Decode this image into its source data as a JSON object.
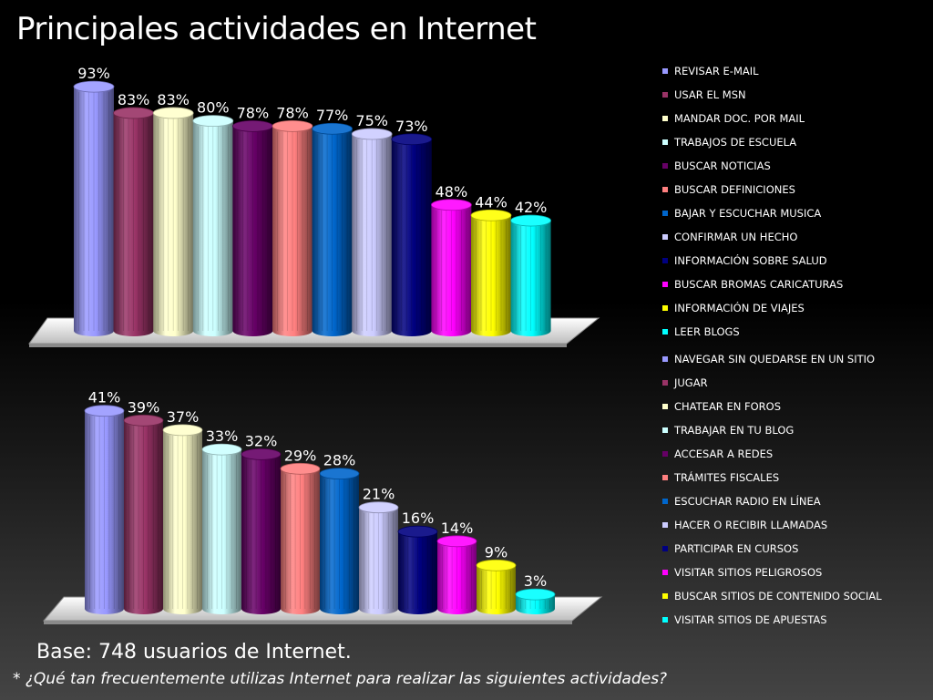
{
  "title": "Principales actividades en Internet",
  "base_text": "Base: 748 usuarios de Internet.",
  "footnote": "* ¿Qué tan frecuentemente utilizas Internet para realizar las siguientes actividades?",
  "chart_data": [
    {
      "type": "bar",
      "style": "3d-cylinder",
      "legend_position": "right",
      "categories": [
        "REVISAR E-MAIL",
        "USAR EL MSN",
        "MANDAR DOC. POR MAIL",
        "TRABAJOS DE ESCUELA",
        "BUSCAR NOTICIAS",
        "BUSCAR DEFINICIONES",
        "BAJAR Y ESCUCHAR MUSICA",
        "CONFIRMAR UN HECHO",
        "INFORMACIÓN SOBRE SALUD",
        "BUSCAR BROMAS CARICATURAS",
        "INFORMACIÓN DE VIAJES",
        "LEER BLOGS"
      ],
      "values": [
        93,
        83,
        83,
        80,
        78,
        78,
        77,
        75,
        73,
        48,
        44,
        42
      ],
      "labels": [
        "93%",
        "83%",
        "83%",
        "80%",
        "78%",
        "78%",
        "77%",
        "75%",
        "73%",
        "48%",
        "44%",
        "42%"
      ],
      "colors": [
        "#9999ff",
        "#993366",
        "#ffffcc",
        "#ccffff",
        "#660066",
        "#ff8080",
        "#0066cc",
        "#ccccff",
        "#000080",
        "#ff00ff",
        "#ffff00",
        "#00ffff"
      ]
    },
    {
      "type": "bar",
      "style": "3d-cylinder",
      "legend_position": "right",
      "categories": [
        "NAVEGAR SIN QUEDARSE EN UN SITIO",
        "JUGAR",
        "CHATEAR EN FOROS",
        "TRABAJAR EN TU BLOG",
        "ACCESAR A REDES",
        "TRÁMITES FISCALES",
        "ESCUCHAR RADIO EN LÍNEA",
        "HACER O RECIBIR LLAMADAS",
        "PARTICIPAR EN CURSOS",
        "VISITAR SITIOS PELIGROSOS",
        "BUSCAR SITIOS DE CONTENIDO SOCIAL",
        "VISITAR SITIOS DE APUESTAS"
      ],
      "values": [
        41,
        39,
        37,
        33,
        32,
        29,
        28,
        21,
        16,
        14,
        9,
        3
      ],
      "labels": [
        "41%",
        "39%",
        "37%",
        "33%",
        "32%",
        "29%",
        "28%",
        "21%",
        "16%",
        "14%",
        "9%",
        "3%"
      ],
      "colors": [
        "#9999ff",
        "#993366",
        "#ffffcc",
        "#ccffff",
        "#660066",
        "#ff8080",
        "#0066cc",
        "#ccccff",
        "#000080",
        "#ff00ff",
        "#ffff00",
        "#00ffff"
      ]
    }
  ]
}
